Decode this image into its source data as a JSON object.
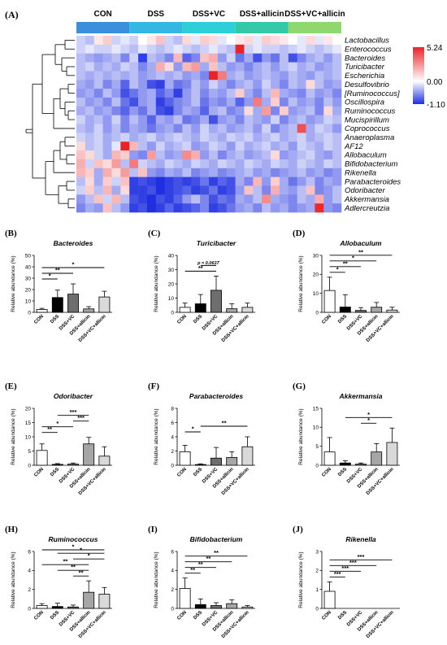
{
  "heatmap": {
    "panel_label": "(A)",
    "groups": [
      "CON",
      "DSS",
      "DSS+VC",
      "DSS+allicin",
      "DSS+VC+allicin"
    ],
    "group_colors": [
      "#3b8fdc",
      "#34b8e3",
      "#2ccfd8",
      "#33c9a8",
      "#8fd870"
    ],
    "taxa": [
      "Lactobacillus",
      "Enterococcus",
      "Bacteroides",
      "Turicibacter",
      "Escherichia",
      "Desulfovibrio",
      "[Ruminococcus]",
      "Oscillospira",
      "Ruminococcus",
      "Mucispirillum",
      "Coprococcus",
      "Anaeroplasma",
      "AF12",
      "Allobaculum",
      "Bifidobacterium",
      "Rikenella",
      "Parabacteroides",
      "Odoribacter",
      "Akkermansia",
      "Adlercreutzia"
    ],
    "scale": {
      "max_label": "5.24",
      "mid_label": "0.00",
      "min_label": "-1.10",
      "max": 5.24,
      "min": -1.1,
      "high_color": "#e8242a",
      "low_color": "#1f2fe0",
      "mid_color": "#ffffff"
    },
    "values": [
      [
        -0.2,
        -0.3,
        0.1,
        0.3,
        -0.2,
        -0.1,
        -0.2,
        0.0,
        0.1,
        0.4,
        -0.2,
        -0.3,
        0.2,
        -0.1,
        0.3,
        0.2,
        -0.1,
        0.0,
        0.1,
        0.2,
        -0.1,
        0.3,
        0.2,
        0.1,
        0.0,
        -0.1,
        0.2,
        -0.1,
        0.1,
        0.0
      ],
      [
        -0.2,
        -0.1,
        -0.2,
        -0.2,
        -0.1,
        -0.2,
        -0.3,
        -0.1,
        -0.2,
        -0.3,
        -0.2,
        -0.1,
        -0.2,
        -0.3,
        -0.2,
        -0.1,
        -0.2,
        -0.3,
        5.0,
        -0.2,
        -0.1,
        -0.2,
        -0.2,
        -0.3,
        -0.2,
        -0.1,
        -0.2,
        -0.3,
        -0.2,
        -0.1
      ],
      [
        -0.3,
        -0.4,
        -0.5,
        -0.4,
        -0.3,
        -0.6,
        -0.2,
        -1.0,
        -0.3,
        -0.4,
        -0.6,
        0.5,
        -0.8,
        -0.6,
        0.4,
        0.6,
        -0.5,
        -0.2,
        -0.7,
        -0.4,
        -0.9,
        -0.5,
        -0.7,
        -0.3,
        -0.9,
        -0.6,
        -0.4,
        -0.3,
        -0.5,
        -0.3
      ],
      [
        -0.3,
        -0.2,
        -0.4,
        -0.3,
        -0.4,
        -0.2,
        -0.3,
        -0.6,
        -0.4,
        0.6,
        0.2,
        -0.5,
        0.5,
        0.8,
        -0.4,
        0.4,
        -0.3,
        -0.5,
        -0.4,
        -0.6,
        -0.4,
        -0.3,
        -0.5,
        -0.3,
        -0.2,
        -0.4,
        -0.3,
        -0.5,
        -0.4,
        -0.3
      ],
      [
        -0.3,
        -0.4,
        -0.3,
        -0.4,
        -0.3,
        -0.4,
        -0.3,
        -0.5,
        -0.4,
        -0.3,
        -0.4,
        -0.3,
        -0.5,
        -0.4,
        -0.6,
        2.5,
        1.2,
        -0.4,
        -0.3,
        -0.5,
        -0.4,
        -0.3,
        -0.4,
        -0.5,
        -0.3,
        -0.4,
        -0.5,
        -0.3,
        -0.4,
        -0.3
      ],
      [
        -0.4,
        -0.5,
        -0.3,
        -0.6,
        -0.4,
        -0.8,
        -0.3,
        -0.5,
        -0.9,
        -1.0,
        -0.4,
        -0.7,
        -0.6,
        -0.3,
        -0.5,
        -0.2,
        -0.4,
        -0.6,
        -0.4,
        -0.3,
        -0.5,
        -0.2,
        -0.4,
        -0.6,
        -0.3,
        -0.4,
        0.2,
        -0.3,
        -0.5,
        -0.4
      ],
      [
        -0.5,
        -0.4,
        -0.6,
        -0.3,
        -0.5,
        -0.9,
        -0.7,
        -0.5,
        -0.4,
        -0.8,
        -0.6,
        -1.0,
        -0.5,
        -0.3,
        -0.6,
        -0.4,
        -0.5,
        -0.3,
        0.3,
        -0.4,
        -0.6,
        -0.3,
        0.5,
        -0.4,
        -0.5,
        -0.6,
        -0.3,
        -0.5,
        -0.4,
        -0.6
      ],
      [
        -0.3,
        -0.5,
        -0.4,
        -0.6,
        -0.3,
        -0.7,
        -0.9,
        -0.5,
        -0.4,
        -1.0,
        -0.8,
        -0.6,
        -0.5,
        -0.3,
        -0.7,
        -0.5,
        -0.6,
        -0.4,
        -0.8,
        -0.5,
        1.2,
        -0.4,
        0.3,
        -0.6,
        -0.3,
        -0.5,
        -0.4,
        -0.6,
        -0.3,
        -0.5
      ],
      [
        -0.4,
        -0.3,
        -0.5,
        -0.4,
        -0.6,
        -0.8,
        -0.5,
        -0.7,
        -0.4,
        -0.9,
        -1.0,
        -0.6,
        -0.4,
        -0.5,
        -0.8,
        -0.4,
        -0.3,
        -0.6,
        -0.5,
        0.2,
        -0.4,
        0.8,
        -0.6,
        0.3,
        -0.5,
        -0.4,
        -0.3,
        -0.6,
        0.2,
        -0.4
      ],
      [
        -0.2,
        -0.4,
        -0.3,
        -0.5,
        -0.2,
        -0.6,
        -0.3,
        -0.5,
        -0.8,
        -0.4,
        -0.5,
        -0.3,
        -0.7,
        -0.6,
        -0.4,
        -0.9,
        -0.5,
        -0.4,
        -0.6,
        -0.3,
        -0.4,
        -0.5,
        -0.2,
        -0.6,
        -0.4,
        -0.3,
        -0.5,
        -0.4,
        -0.2,
        -0.3
      ],
      [
        -0.3,
        -0.4,
        -0.2,
        -0.5,
        -0.3,
        -0.6,
        -0.4,
        -0.5,
        -0.7,
        -0.5,
        -0.4,
        -0.6,
        -0.3,
        -0.5,
        -0.2,
        -0.4,
        -0.3,
        -0.5,
        -0.4,
        -0.3,
        -0.5,
        -0.2,
        -0.6,
        -0.4,
        -0.3,
        1.8,
        -0.4,
        -0.2,
        -0.3,
        -0.5
      ],
      [
        -0.2,
        -0.3,
        -0.2,
        -0.4,
        -0.3,
        -0.2,
        -0.4,
        -0.3,
        -0.2,
        -0.4,
        -0.3,
        -0.2,
        -0.3,
        -0.4,
        -0.2,
        -0.3,
        -0.4,
        -0.2,
        -0.3,
        -0.2,
        -0.4,
        -0.3,
        -0.2,
        -0.4,
        -0.3,
        -0.2,
        -0.4,
        -0.3,
        -0.2,
        -0.3
      ],
      [
        0.2,
        -0.3,
        -0.2,
        -0.4,
        -0.1,
        3.5,
        0.5,
        -0.3,
        -0.5,
        -0.2,
        -0.4,
        -0.3,
        -0.2,
        -0.5,
        -0.4,
        -0.2,
        -0.3,
        -0.5,
        -0.2,
        -0.4,
        -0.3,
        -0.2,
        -0.4,
        -0.3,
        -0.5,
        -0.2,
        -0.3,
        -0.4,
        -0.2,
        -0.3
      ],
      [
        0.4,
        0.2,
        -0.2,
        -0.4,
        0.5,
        0.3,
        -0.5,
        -0.6,
        0.8,
        -0.3,
        -0.5,
        -0.4,
        1.0,
        0.6,
        -0.5,
        -0.3,
        -0.6,
        -0.4,
        -0.3,
        -0.5,
        -0.4,
        -0.3,
        0.2,
        -0.5,
        -0.4,
        -0.3,
        -0.2,
        -0.4,
        -0.5,
        -0.3
      ],
      [
        0.6,
        -0.2,
        0.4,
        0.2,
        0.8,
        -0.3,
        1.2,
        -0.2,
        -0.3,
        -0.4,
        -0.2,
        -0.3,
        -0.4,
        -0.2,
        -0.3,
        -0.4,
        -0.2,
        -0.3,
        -0.4,
        -0.2,
        -0.3,
        -0.4,
        -0.2,
        -0.3,
        -0.4,
        -0.2,
        -0.3,
        -0.4,
        -0.2,
        -0.3
      ],
      [
        0.5,
        0.3,
        -0.4,
        0.6,
        0.2,
        0.8,
        -0.3,
        0.4,
        -0.5,
        -0.6,
        -0.4,
        -0.5,
        -0.3,
        -0.6,
        -0.5,
        -0.4,
        -0.6,
        -0.5,
        -0.4,
        -0.3,
        -0.5,
        -0.4,
        -0.6,
        -0.5,
        -0.4,
        -0.3,
        -0.5,
        -0.4,
        -0.6,
        -0.5
      ],
      [
        -0.3,
        0.2,
        -0.4,
        0.3,
        -0.2,
        0.4,
        -1.0,
        -0.9,
        -1.0,
        -1.1,
        -1.0,
        -0.9,
        -1.0,
        -0.9,
        -0.7,
        -1.0,
        -0.8,
        -0.9,
        -0.4,
        -0.6,
        0.5,
        -0.5,
        0.3,
        -0.4,
        -0.7,
        -0.5,
        -0.3,
        -0.6,
        -0.4,
        -0.5
      ],
      [
        -0.2,
        0.3,
        -0.3,
        0.5,
        -0.4,
        0.2,
        -1.0,
        -1.0,
        -0.9,
        -1.1,
        -1.0,
        -0.9,
        -0.8,
        -1.0,
        -0.9,
        -0.7,
        -1.0,
        -0.9,
        -0.5,
        0.4,
        -0.3,
        -0.6,
        0.6,
        -0.4,
        -0.5,
        -0.3,
        0.4,
        -0.6,
        -0.5,
        -0.3
      ],
      [
        -0.5,
        -0.3,
        0.4,
        -0.2,
        0.5,
        -0.3,
        -0.9,
        -1.0,
        -1.1,
        -0.9,
        -1.0,
        -0.8,
        -0.5,
        -0.3,
        -0.6,
        -0.9,
        -0.7,
        -0.8,
        -0.4,
        -0.5,
        -0.3,
        1.0,
        -0.4,
        -0.5,
        -0.6,
        -0.3,
        -0.4,
        0.6,
        -0.5,
        -0.3
      ],
      [
        -0.6,
        -0.4,
        -0.5,
        0.4,
        -0.3,
        -0.5,
        -1.0,
        -0.9,
        -1.1,
        -1.0,
        -0.8,
        -1.0,
        -0.9,
        -0.8,
        -0.6,
        -1.0,
        -0.9,
        -0.7,
        -0.5,
        -0.4,
        -0.6,
        -0.3,
        -0.5,
        -0.4,
        -0.6,
        -0.5,
        -0.4,
        2.4,
        -0.5,
        -0.6
      ]
    ]
  },
  "bar_panels": {
    "categories": [
      "CON",
      "DSS",
      "DSS+VC",
      "DSS+allicin",
      "DSS+VC+allicin"
    ],
    "bar_colors": [
      "#ffffff",
      "#000000",
      "#6e6e6e",
      "#a6a6a6",
      "#d9d9d9"
    ],
    "ylabel": "Relative abundance (%)"
  },
  "chart_data": [
    {
      "type": "bar",
      "panel": "(B)",
      "title": "Bacteroides",
      "categories": [
        "CON",
        "DSS",
        "DSS+VC",
        "DSS+allicin",
        "DSS+VC+allicin"
      ],
      "values": [
        2.5,
        13,
        16,
        3,
        13.5
      ],
      "errors": [
        1,
        6.5,
        9,
        2,
        5
      ],
      "ylim": [
        0,
        50
      ],
      "yticks": [
        0,
        10,
        20,
        30,
        40,
        50
      ],
      "ylabel": "Relative abundance (%)",
      "annotations": [
        {
          "from": 0,
          "to": 1,
          "label": "*"
        },
        {
          "from": 0,
          "to": 2,
          "label": "**"
        },
        {
          "from": 0,
          "to": 4,
          "label": "*"
        }
      ]
    },
    {
      "type": "bar",
      "panel": "(C)",
      "title": "Turicibacter",
      "categories": [
        "CON",
        "DSS",
        "DSS+VC",
        "DSS+allicin",
        "DSS+VC+allicin"
      ],
      "values": [
        3.5,
        6,
        15.5,
        2.5,
        3.5
      ],
      "errors": [
        3,
        6.5,
        10,
        3.5,
        3
      ],
      "ylim": [
        0,
        40
      ],
      "yticks": [
        0,
        10,
        20,
        30,
        40
      ],
      "ylabel": "Relative abundance (%)",
      "annotations": [
        {
          "from": 0,
          "to": 2,
          "label": "**"
        },
        {
          "from": 1,
          "to": 2,
          "label": "p = 0.0637"
        }
      ]
    },
    {
      "type": "bar",
      "panel": "(D)",
      "title": "Allobaculum",
      "categories": [
        "CON",
        "DSS",
        "DSS+VC",
        "DSS+allicin",
        "DSS+VC+allicin"
      ],
      "values": [
        11.5,
        2.8,
        1,
        2.7,
        1.2
      ],
      "errors": [
        7,
        6.5,
        1.5,
        2.5,
        1.5
      ],
      "ylim": [
        0,
        30
      ],
      "yticks": [
        0,
        10,
        20,
        30
      ],
      "ylabel": "Relative abundance (%)",
      "annotations": [
        {
          "from": 0,
          "to": 1,
          "label": "*"
        },
        {
          "from": 0,
          "to": 2,
          "label": "**"
        },
        {
          "from": 0,
          "to": 3,
          "label": "*"
        },
        {
          "from": 0,
          "to": 4,
          "label": "**"
        }
      ]
    },
    {
      "type": "bar",
      "panel": "(E)",
      "title": "Odoribacter",
      "categories": [
        "CON",
        "DSS",
        "DSS+VC",
        "DSS+allicin",
        "DSS+VC+allicin"
      ],
      "values": [
        5.2,
        0.3,
        0.4,
        7.5,
        3.2
      ],
      "errors": [
        2.3,
        0.3,
        0.4,
        2.3,
        3.3
      ],
      "ylim": [
        0,
        20
      ],
      "yticks": [
        0,
        5,
        10,
        15,
        20
      ],
      "ylabel": "Relative abundance (%)",
      "annotations": [
        {
          "from": 0,
          "to": 1,
          "label": "**"
        },
        {
          "from": 0,
          "to": 2,
          "label": "*"
        },
        {
          "from": 2,
          "to": 3,
          "label": "***"
        },
        {
          "from": 1,
          "to": 3,
          "label": "***"
        }
      ]
    },
    {
      "type": "bar",
      "panel": "(F)",
      "title": "Parabacteroides",
      "categories": [
        "CON",
        "DSS",
        "DSS+VC",
        "DSS+allicin",
        "DSS+VC+allicin"
      ],
      "values": [
        1.9,
        0.1,
        1.0,
        1.1,
        2.6
      ],
      "errors": [
        0.9,
        0.1,
        1.5,
        0.8,
        1.4
      ],
      "ylim": [
        0,
        8
      ],
      "yticks": [
        0,
        2,
        4,
        6,
        8
      ],
      "ylabel": "Relative abundance (%)",
      "annotations": [
        {
          "from": 0,
          "to": 1,
          "label": "*"
        },
        {
          "from": 1,
          "to": 4,
          "label": "**"
        }
      ]
    },
    {
      "type": "bar",
      "panel": "(G)",
      "title": "Akkermansia",
      "categories": [
        "CON",
        "DSS",
        "DSS+VC",
        "DSS+allicin",
        "DSS+VC+allicin"
      ],
      "values": [
        3.5,
        0.6,
        0.3,
        3.5,
        6.0
      ],
      "errors": [
        3.8,
        0.6,
        0.3,
        2.2,
        3.8
      ],
      "ylim": [
        0,
        15
      ],
      "yticks": [
        0,
        5,
        10,
        15
      ],
      "ylabel": "Relative abundance (%)",
      "annotations": [
        {
          "from": 2,
          "to": 3,
          "label": "*"
        },
        {
          "from": 1,
          "to": 4,
          "label": "*"
        }
      ]
    },
    {
      "type": "bar",
      "panel": "(H)",
      "title": "Ruminococcus",
      "categories": [
        "CON",
        "DSS",
        "DSS+VC",
        "DSS+allicin",
        "DSS+VC+allicin"
      ],
      "values": [
        0.3,
        0.2,
        0.15,
        1.7,
        1.5
      ],
      "errors": [
        0.2,
        0.35,
        0.2,
        1.2,
        0.7
      ],
      "ylim": [
        0,
        6
      ],
      "yticks": [
        0,
        2,
        4,
        6
      ],
      "ylabel": "Relative abundance (%)",
      "annotations": [
        {
          "from": 2,
          "to": 3,
          "label": "**"
        },
        {
          "from": 1,
          "to": 3,
          "label": "**"
        },
        {
          "from": 0,
          "to": 3,
          "label": "**"
        },
        {
          "from": 2,
          "to": 4,
          "label": "*"
        },
        {
          "from": 1,
          "to": 4,
          "label": "*"
        },
        {
          "from": 0,
          "to": 4,
          "label": "*"
        }
      ]
    },
    {
      "type": "bar",
      "panel": "(I)",
      "title": "Bifidobacterium",
      "categories": [
        "CON",
        "DSS",
        "DSS+VC",
        "DSS+allicin",
        "DSS+VC+allicin"
      ],
      "values": [
        2.1,
        0.4,
        0.3,
        0.5,
        0.15
      ],
      "errors": [
        1.1,
        0.6,
        0.3,
        0.4,
        0.15
      ],
      "ylim": [
        0,
        6
      ],
      "yticks": [
        0,
        2,
        4,
        6
      ],
      "ylabel": "Relative abundance (%)",
      "annotations": [
        {
          "from": 0,
          "to": 1,
          "label": "**"
        },
        {
          "from": 0,
          "to": 2,
          "label": "**"
        },
        {
          "from": 0,
          "to": 3,
          "label": "**"
        },
        {
          "from": 0,
          "to": 4,
          "label": "**"
        }
      ]
    },
    {
      "type": "bar",
      "panel": "(J)",
      "title": "Rikenella",
      "categories": [
        "CON",
        "DSS",
        "DSS+VC",
        "DSS+allicin",
        "DSS+VC+allicin"
      ],
      "values": [
        0.9,
        0,
        0,
        0,
        0
      ],
      "errors": [
        0.5,
        0,
        0,
        0,
        0
      ],
      "ylim": [
        0,
        3
      ],
      "yticks": [
        0,
        1,
        2,
        3
      ],
      "ylabel": "Relative abundance (%)",
      "annotations": [
        {
          "from": 0,
          "to": 1,
          "label": "***"
        },
        {
          "from": 0,
          "to": 2,
          "label": "***"
        },
        {
          "from": 0,
          "to": 3,
          "label": "***"
        },
        {
          "from": 0,
          "to": 4,
          "label": "***"
        }
      ]
    }
  ]
}
